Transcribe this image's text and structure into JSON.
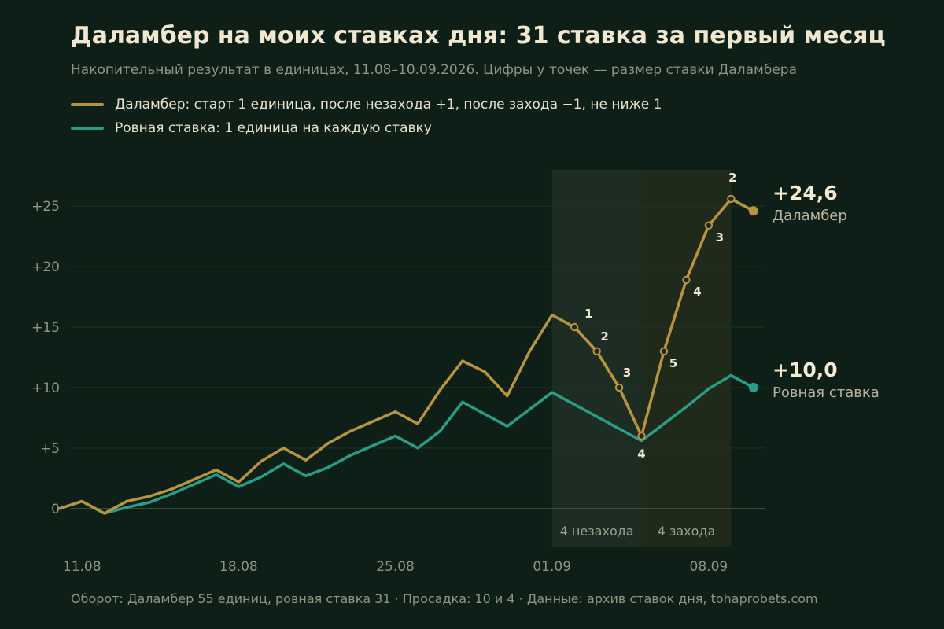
{
  "title": "Даламбер на моих ставках дня: 31 ставка за первый месяц",
  "subtitle": "Накопительный результат в единицах, 11.08–10.09.2026. Цифры у точек — размер ставки Даламбера",
  "footer": "Оборот: Даламбер 55 единиц, ровная ставка 31  ·  Просадка: 10 и 4  ·  Данные: архив ставок дня, tohaprobets.com",
  "colors": {
    "background": "#0d1f16",
    "dalembert": "#b89440",
    "flat": "#2a9d88",
    "loss_band": "#1d2d24",
    "win_band": "#202a1a",
    "text_muted": "#8f9582"
  },
  "chart_data": {
    "type": "line",
    "title": "Даламбер на моих ставках дня: 31 ставка за первый месяц",
    "x_tick_labels": [
      "11.08",
      "18.08",
      "25.08",
      "01.09",
      "08.09"
    ],
    "x_tick_positions": [
      1,
      8,
      15,
      22,
      29
    ],
    "x_range": [
      0.5,
      31.5
    ],
    "y_tick_labels": [
      "0",
      "+5",
      "+10",
      "+15",
      "+20",
      "+25"
    ],
    "y_tick_values": [
      0,
      5,
      10,
      15,
      20,
      25
    ],
    "ylim": [
      -3.2,
      28
    ],
    "grid": true,
    "legend_position": "top-left",
    "series": [
      {
        "name": "Даламбер",
        "legend_label": "Даламбер: старт 1 единица, после незахода +1, после захода −1, не ниже 1",
        "end_label": "+24,6",
        "color": "#b89440",
        "x": [
          0,
          1,
          2,
          3,
          4,
          5,
          6,
          7,
          8,
          9,
          10,
          11,
          12,
          13,
          14,
          15,
          16,
          17,
          18,
          19,
          20,
          21,
          22,
          23,
          24,
          25,
          26,
          27,
          28,
          29,
          30,
          31
        ],
        "y": [
          0,
          0.6,
          -0.4,
          0.6,
          1.0,
          1.6,
          2.4,
          3.2,
          2.2,
          3.9,
          5.0,
          4.0,
          5.4,
          6.4,
          7.2,
          8.0,
          7.0,
          9.8,
          12.2,
          11.3,
          9.3,
          13.0,
          16.0,
          15.0,
          13.0,
          10.0,
          6.0,
          13.0,
          18.9,
          23.4,
          25.6,
          24.6
        ]
      },
      {
        "name": "Ровная ставка",
        "legend_label": "Ровная ставка: 1 единица на каждую ставку",
        "end_label": "+10,0",
        "color": "#2a9d88",
        "x": [
          0,
          1,
          2,
          3,
          4,
          5,
          6,
          7,
          8,
          9,
          10,
          11,
          12,
          13,
          14,
          15,
          16,
          17,
          18,
          19,
          20,
          21,
          22,
          23,
          24,
          25,
          26,
          27,
          28,
          29,
          30,
          31
        ],
        "y": [
          0,
          0.6,
          -0.4,
          0.1,
          0.5,
          1.2,
          2.0,
          2.8,
          1.8,
          2.6,
          3.7,
          2.7,
          3.4,
          4.4,
          5.2,
          6.0,
          5.0,
          6.4,
          8.8,
          7.8,
          6.8,
          8.2,
          9.6,
          8.6,
          7.6,
          6.6,
          5.6,
          7.0,
          8.4,
          9.9,
          11.0,
          10.0
        ]
      }
    ],
    "stake_labels": [
      {
        "x": 23,
        "label": "1"
      },
      {
        "x": 24,
        "label": "2"
      },
      {
        "x": 25,
        "label": "3"
      },
      {
        "x": 26,
        "label": "4"
      },
      {
        "x": 27,
        "label": "5"
      },
      {
        "x": 28,
        "label": "4"
      },
      {
        "x": 29,
        "label": "3"
      },
      {
        "x": 30,
        "label": "2"
      }
    ],
    "annotations": [
      {
        "label": "4 незахода",
        "x_start": 22,
        "x_end": 26,
        "kind": "loss"
      },
      {
        "label": "4 захода",
        "x_start": 26,
        "x_end": 30,
        "kind": "win"
      }
    ]
  }
}
